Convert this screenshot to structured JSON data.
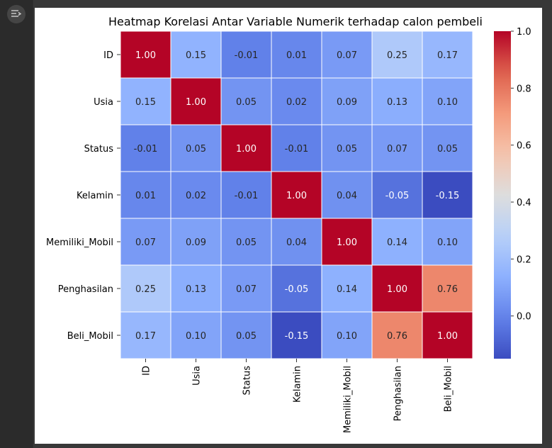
{
  "toolbar": {
    "output_icon": "output-toggle-icon"
  },
  "chart_data": {
    "type": "heatmap",
    "title": "Heatmap Korelasi Antar Variable Numerik terhadap calon pembeli",
    "rows": [
      "ID",
      "Usia",
      "Status",
      "Kelamin",
      "Memiliki_Mobil",
      "Penghasilan",
      "Beli_Mobil"
    ],
    "columns": [
      "ID",
      "Usia",
      "Status",
      "Kelamin",
      "Memiliki_Mobil",
      "Penghasilan",
      "Beli_Mobil"
    ],
    "values": [
      [
        1.0,
        0.15,
        -0.01,
        0.01,
        0.07,
        0.25,
        0.17
      ],
      [
        0.15,
        1.0,
        0.05,
        0.02,
        0.09,
        0.13,
        0.1
      ],
      [
        -0.01,
        0.05,
        1.0,
        -0.01,
        0.05,
        0.07,
        0.05
      ],
      [
        0.01,
        0.02,
        -0.01,
        1.0,
        0.04,
        -0.05,
        -0.15
      ],
      [
        0.07,
        0.09,
        0.05,
        0.04,
        1.0,
        0.14,
        0.1
      ],
      [
        0.25,
        0.13,
        0.07,
        -0.05,
        0.14,
        1.0,
        0.76
      ],
      [
        0.17,
        0.1,
        0.05,
        -0.15,
        0.1,
        0.76,
        1.0
      ]
    ],
    "colormap": "coolwarm",
    "vmin": -0.15,
    "vmax": 1.0,
    "colorbar_ticks": [
      "1.0",
      "0.8",
      "0.6",
      "0.4",
      "0.2",
      "0.0"
    ],
    "annotations_format": "0.00"
  }
}
